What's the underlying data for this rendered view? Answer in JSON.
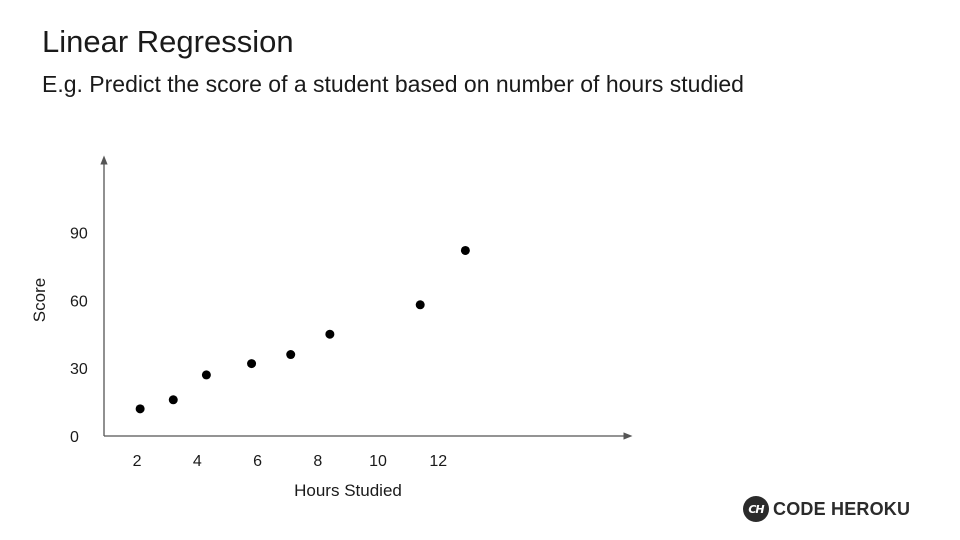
{
  "slide": {
    "title": "Linear Regression",
    "subtitle": "E.g. Predict the score of a student based on number of hours studied"
  },
  "brand": {
    "logo_text": "CH",
    "name": "CODE HEROKU"
  },
  "chart_data": {
    "type": "scatter",
    "title": "",
    "xlabel": "Hours Studied",
    "ylabel": "Score",
    "x_ticks": [
      "2",
      "4",
      "6",
      "8",
      "10",
      "12"
    ],
    "x_tick_values": [
      2,
      4,
      6,
      8,
      10,
      12
    ],
    "y_ticks": [
      "0",
      "30",
      "60",
      "90"
    ],
    "y_tick_values": [
      0,
      30,
      60,
      90
    ],
    "xlim": [
      0.9,
      18.3
    ],
    "ylim": [
      0,
      122
    ],
    "grid": false,
    "legend": "none",
    "point_color": "#000000",
    "points": [
      {
        "x": 2.1,
        "y": 12
      },
      {
        "x": 3.2,
        "y": 16
      },
      {
        "x": 4.3,
        "y": 27
      },
      {
        "x": 5.8,
        "y": 32
      },
      {
        "x": 7.1,
        "y": 36
      },
      {
        "x": 8.4,
        "y": 45
      },
      {
        "x": 11.4,
        "y": 58
      },
      {
        "x": 12.9,
        "y": 82
      }
    ]
  }
}
